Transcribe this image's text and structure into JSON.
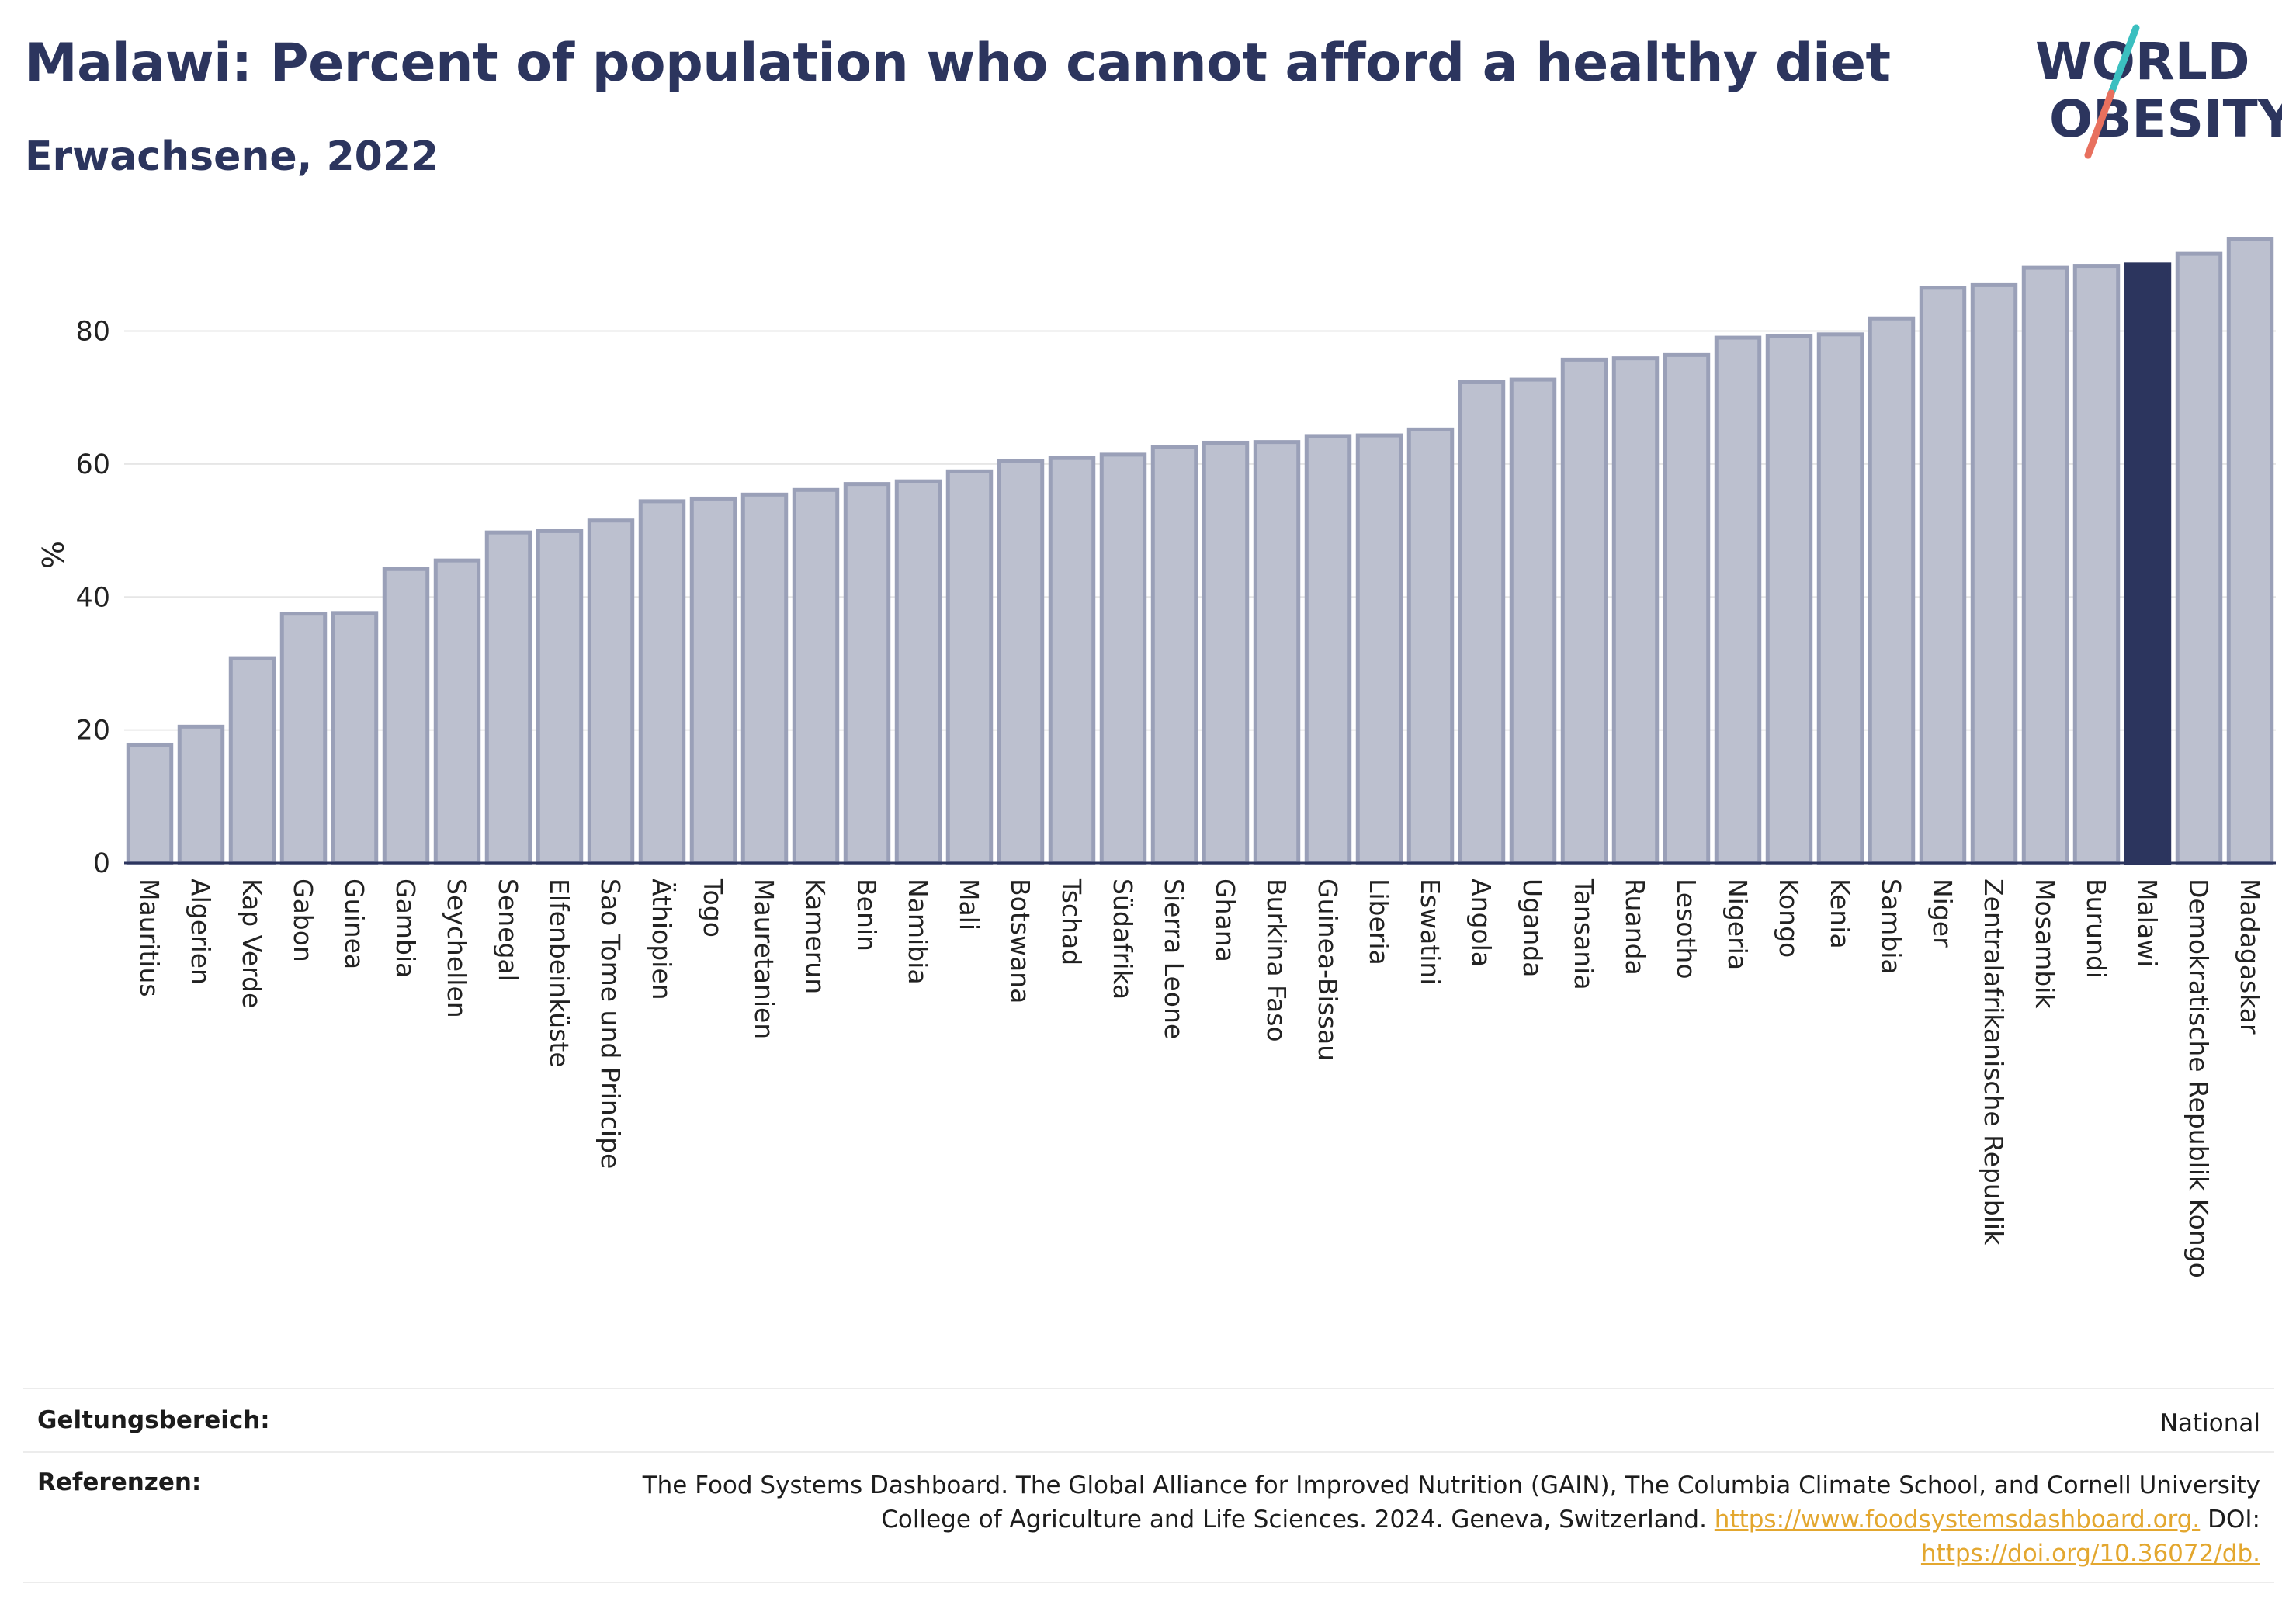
{
  "header": {
    "title": "Malawi: Percent of population who cannot afford a healthy diet",
    "subtitle": "Erwachsene, 2022"
  },
  "logo": {
    "line1": "WORLD",
    "line2": "OBESITY",
    "text_color": "#2c355e",
    "slash_top_color": "#3bbfc0",
    "slash_bottom_color": "#e8705e"
  },
  "colors": {
    "bar_fill": "#bcc0cf",
    "bar_stroke": "#9aa0b8",
    "highlight_fill": "#2c355e",
    "grid": "#e6e6e6",
    "axis": "#2c355e"
  },
  "chart_data": {
    "type": "bar",
    "ylabel": "%",
    "ylim": [
      0,
      95
    ],
    "yticks": [
      0,
      20,
      40,
      60,
      80
    ],
    "grid": true,
    "highlight": "Malawi",
    "categories": [
      "Mauritius",
      "Algerien",
      "Kap Verde",
      "Gabon",
      "Guinea",
      "Gambia",
      "Seychellen",
      "Senegal",
      "Elfenbeinküste",
      "Sao Tome und Principe",
      "Äthiopien",
      "Togo",
      "Mauretanien",
      "Kamerun",
      "Benin",
      "Namibia",
      "Mali",
      "Botswana",
      "Tschad",
      "Südafrika",
      "Sierra Leone",
      "Ghana",
      "Burkina Faso",
      "Guinea-Bissau",
      "Liberia",
      "Eswatini",
      "Angola",
      "Uganda",
      "Tansania",
      "Ruanda",
      "Lesotho",
      "Nigeria",
      "Kongo",
      "Kenia",
      "Sambia",
      "Niger",
      "Zentralafrikanische Republik",
      "Mosambik",
      "Burundi",
      "Malawi",
      "Demokratische Republik Kongo",
      "Madagaskar"
    ],
    "values": [
      17.8,
      20.5,
      30.8,
      37.5,
      37.6,
      44.2,
      45.5,
      49.7,
      49.9,
      51.5,
      54.4,
      54.8,
      55.4,
      56.1,
      57.0,
      57.4,
      58.9,
      60.5,
      60.9,
      61.4,
      62.6,
      63.2,
      63.3,
      64.2,
      64.3,
      65.2,
      72.3,
      72.7,
      75.7,
      75.9,
      76.4,
      79.0,
      79.3,
      79.5,
      81.9,
      86.5,
      86.9,
      89.5,
      89.8,
      90.0,
      91.6,
      93.8
    ]
  },
  "footer": {
    "scope_label": "Geltungsbereich:",
    "scope_value": "National",
    "refs_label": "Referenzen:",
    "refs_line1": "The Food Systems Dashboard. The Global Alliance for Improved Nutrition (GAIN), The Columbia Climate School, and Cornell University",
    "refs_line2": "College of Agriculture and Life Sciences. 2024. Geneva, Switzerland.",
    "refs_link1": "https://www.foodsystemsdashboard.org.",
    "refs_doi_label": "DOI:",
    "refs_link2": "https://doi.org/10.36072/db."
  }
}
